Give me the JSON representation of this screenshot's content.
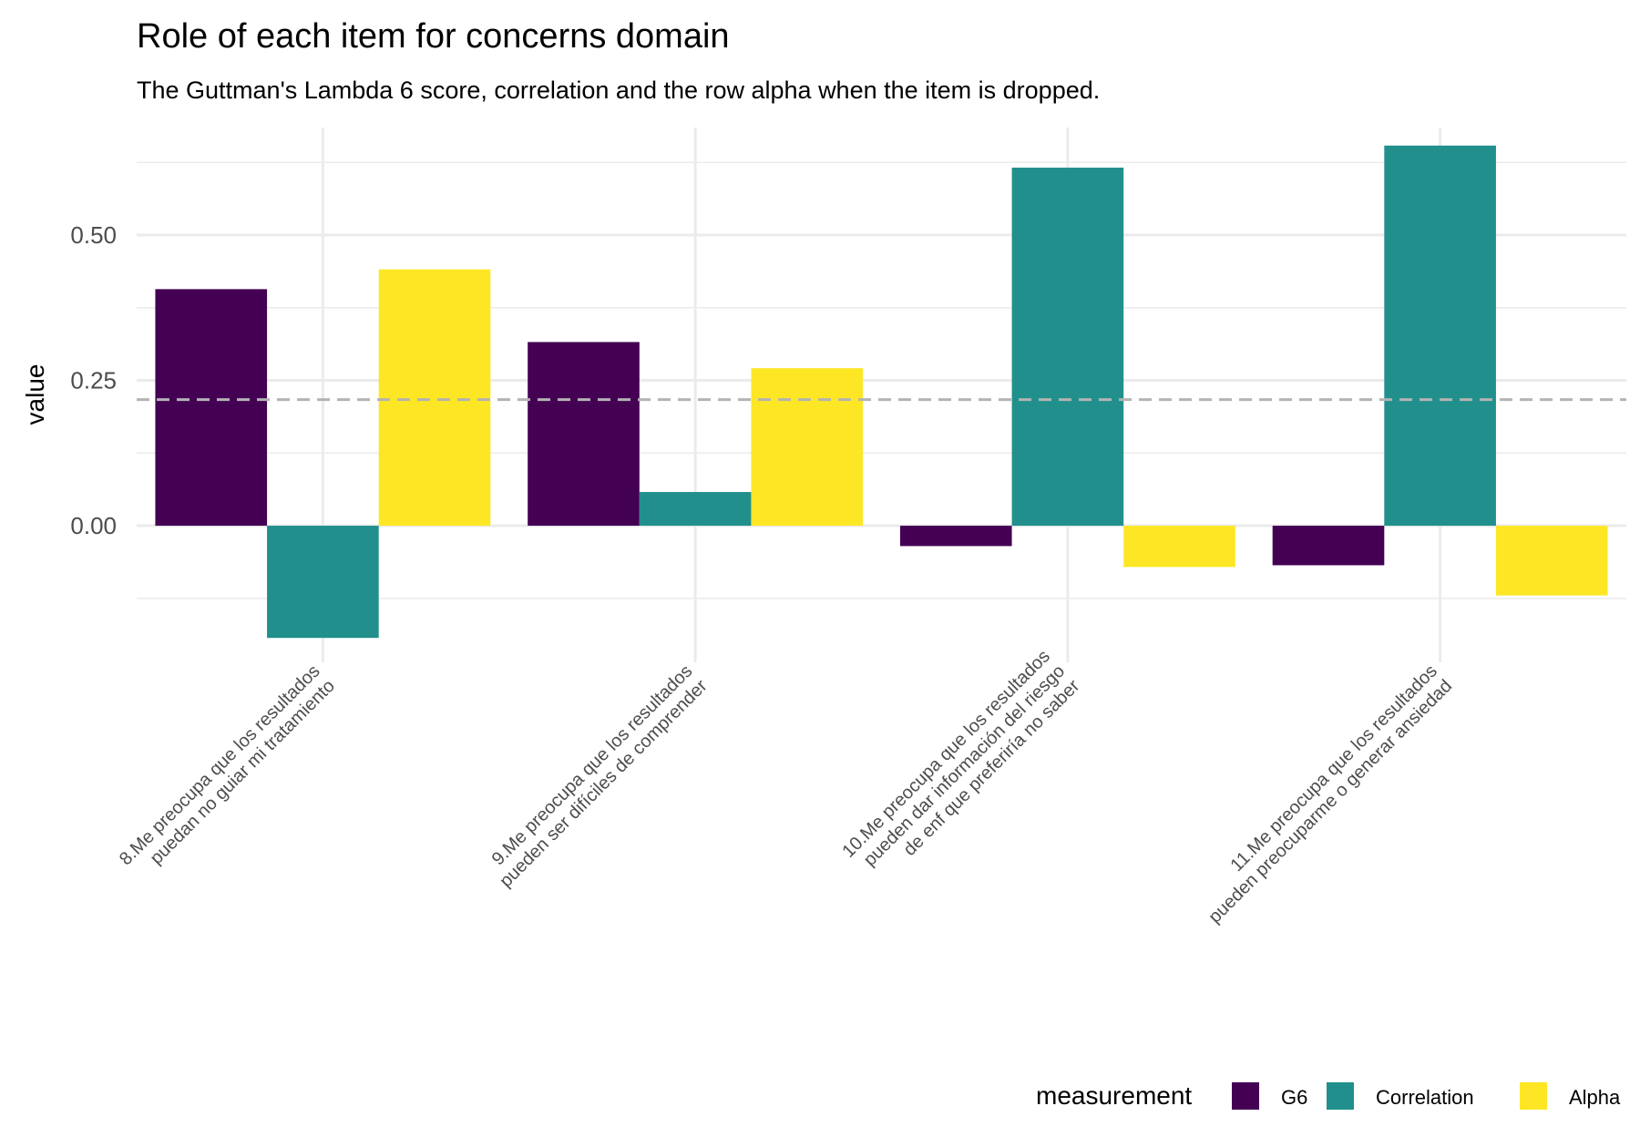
{
  "chart_data": {
    "type": "bar",
    "title": "Role of each item for concerns domain",
    "subtitle": "The Guttman's Lambda 6 score, correlation and the row alpha when the item is dropped.",
    "xlabel": "",
    "ylabel": "value",
    "ylim": [
      -0.235,
      0.685
    ],
    "yticks": [
      0.0,
      0.25,
      0.5
    ],
    "ytick_labels": [
      "0.00",
      "0.25",
      "0.50"
    ],
    "reference_line": {
      "value": 0.217,
      "style": "dashed",
      "color": "#b3b3b3"
    },
    "categories": [
      [
        "8.Me preocupa que los resultados",
        "puedan no guiar mi tratamiento"
      ],
      [
        "9.Me preocupa que los resultados",
        "pueden ser difíciles de comprender"
      ],
      [
        "10.Me preocupa que los resultados",
        "pueden dar información del riesgo",
        "de enf que preferiría no saber"
      ],
      [
        "11.Me preocupa que los resultados",
        "pueden preocuparme o generar ansiedad"
      ]
    ],
    "series": [
      {
        "name": "G6",
        "color": "#440154",
        "values": [
          0.407,
          0.316,
          -0.035,
          -0.068
        ]
      },
      {
        "name": "Correlation",
        "color": "#21908C",
        "values": [
          -0.193,
          0.058,
          0.616,
          0.654
        ]
      },
      {
        "name": "Alpha",
        "color": "#FDE725",
        "values": [
          0.441,
          0.271,
          -0.071,
          -0.12
        ]
      }
    ],
    "legend": {
      "title": "measurement",
      "position": "bottom-right"
    },
    "grid": true
  }
}
